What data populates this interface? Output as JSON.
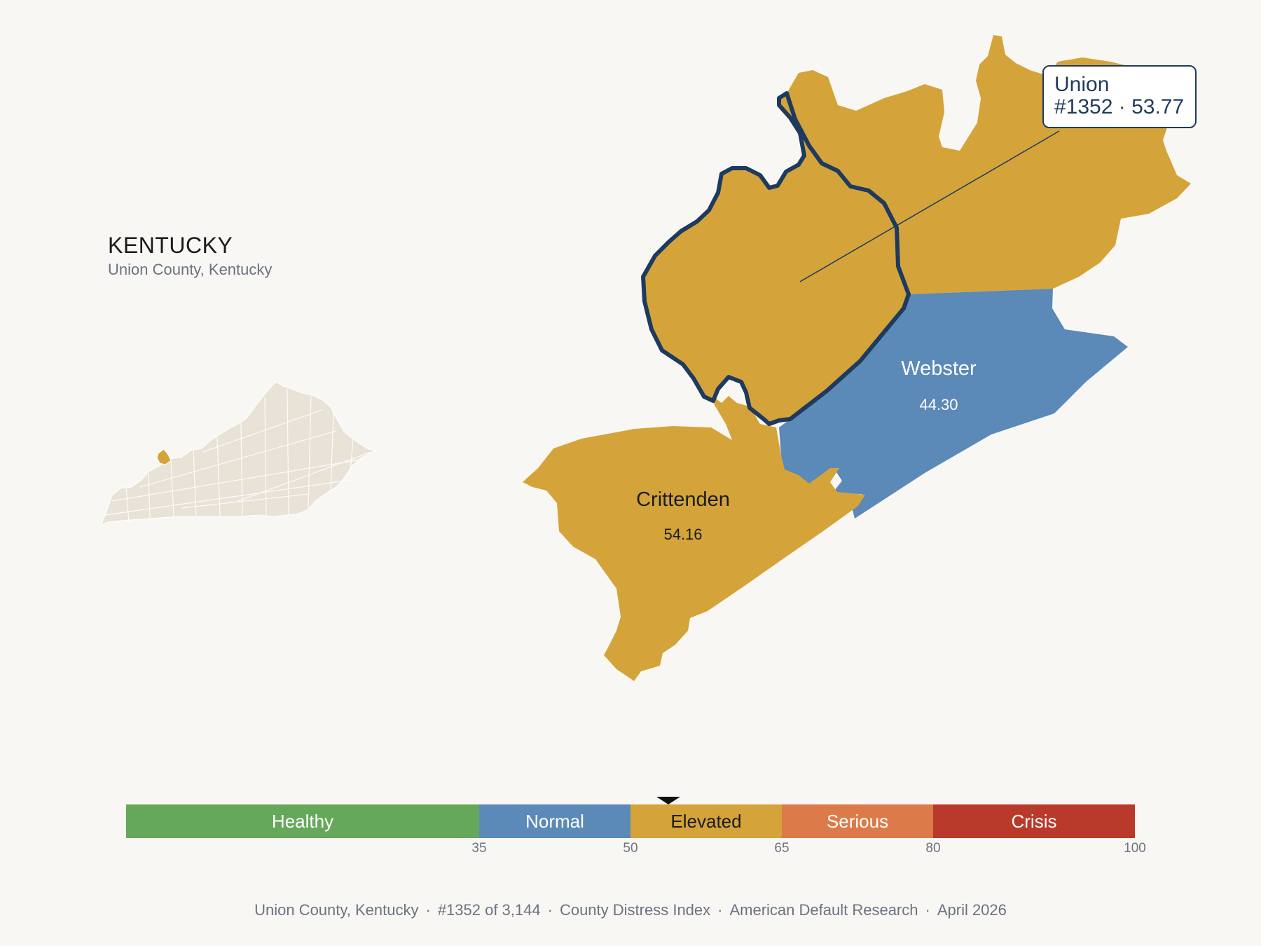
{
  "header": {
    "state": "KENTUCKY",
    "subtitle": "Union County, Kentucky"
  },
  "counties": {
    "union": {
      "name": "Union",
      "score": "53.77",
      "rank": "#1352",
      "callout_line2": "#1352 · 53.77",
      "color": "#d4a43b",
      "outline": "#1e3a5f"
    },
    "webster": {
      "name": "Webster",
      "score": "44.30",
      "color": "#5b89b8"
    },
    "crittenden": {
      "name": "Crittenden",
      "score": "54.16",
      "color": "#d4a43b"
    },
    "henderson": {
      "color": "#d4a43b"
    }
  },
  "locator": {
    "base_color": "#e8e2d7",
    "highlight_color": "#d4a43b"
  },
  "scale": {
    "pointer_value": 53.77,
    "categories": [
      {
        "label": "Healthy",
        "from": 0,
        "to": 35,
        "color": "#66a85a"
      },
      {
        "label": "Normal",
        "from": 35,
        "to": 50,
        "color": "#5b89b8"
      },
      {
        "label": "Elevated",
        "from": 50,
        "to": 65,
        "color": "#d4a43b"
      },
      {
        "label": "Serious",
        "from": 65,
        "to": 80,
        "color": "#dc7a4a"
      },
      {
        "label": "Crisis",
        "from": 80,
        "to": 100,
        "color": "#b93a2b"
      }
    ],
    "ticks": [
      "35",
      "50",
      "65",
      "80",
      "100"
    ]
  },
  "footer": {
    "county": "Union County, Kentucky",
    "rank": "#1352 of 3,144",
    "index": "County Distress Index",
    "source": "American Default Research",
    "date": "April 2026",
    "separator": "·"
  }
}
